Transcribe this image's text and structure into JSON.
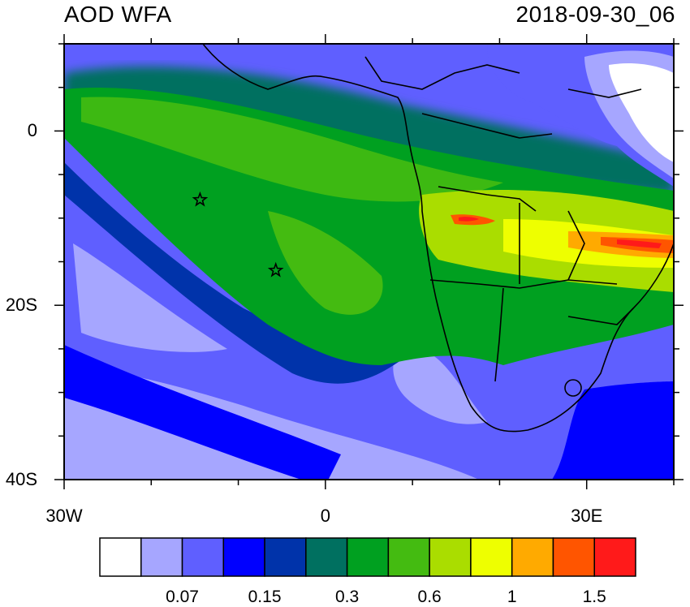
{
  "title": "AOD WFA",
  "timestamp": "2018-09-30_06",
  "axes": {
    "x_ticks": [
      {
        "label": "30W",
        "lon": -30
      },
      {
        "label": "0",
        "lon": 0
      },
      {
        "label": "30E",
        "lon": 30
      }
    ],
    "y_ticks": [
      {
        "label": "0",
        "lat": 0
      },
      {
        "label": "20S",
        "lat": -20
      },
      {
        "label": "40S",
        "lat": -40
      }
    ],
    "lon_range": [
      -30,
      40
    ],
    "lat_range": [
      -40,
      10
    ]
  },
  "colorbar": {
    "colors": [
      "#ffffff",
      "#a6a6ff",
      "#5f5fff",
      "#0000ff",
      "#0033aa",
      "#007060",
      "#00a020",
      "#44bb11",
      "#aadd00",
      "#eeff00",
      "#ffaa00",
      "#ff5500",
      "#ff1a1a"
    ],
    "labels": [
      {
        "text": "0.07",
        "boundary": 2
      },
      {
        "text": "0.15",
        "boundary": 4
      },
      {
        "text": "0.3",
        "boundary": 6
      },
      {
        "text": "0.6",
        "boundary": 8
      },
      {
        "text": "1",
        "boundary": 10
      },
      {
        "text": "1.5",
        "boundary": 12
      }
    ]
  },
  "markers": [
    {
      "name": "star",
      "lon": -14.4,
      "lat": -7.9
    },
    {
      "name": "star",
      "lon": -5.7,
      "lat": -16.0
    }
  ]
}
